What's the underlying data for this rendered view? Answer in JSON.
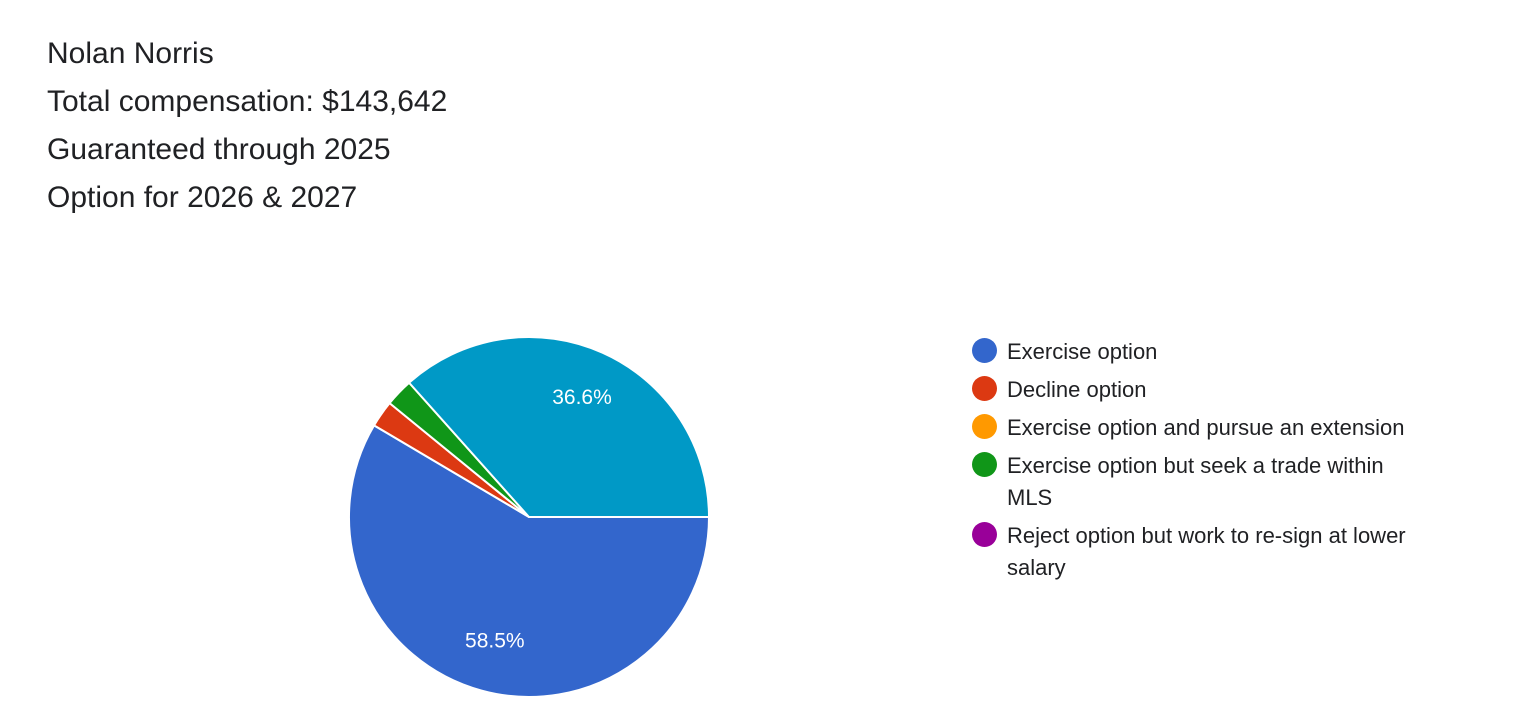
{
  "header": {
    "lines": [
      "Nolan Norris",
      "Total compensation: $143,642",
      "Guaranteed through 2025",
      "Option for 2026 & 2027"
    ]
  },
  "chart_data": {
    "type": "pie",
    "title": "",
    "legend_position": "right",
    "slices": [
      {
        "label": "Exercise option",
        "value": 58.5,
        "color": "#3366cc",
        "display_label": "58.5%"
      },
      {
        "label": "Decline option",
        "value": 2.4,
        "color": "#dc3912",
        "display_label": ""
      },
      {
        "label": "Exercise option and pursue an extension",
        "value": 0.0,
        "color": "#ff9900",
        "display_label": ""
      },
      {
        "label": "Exercise option but seek a trade within MLS",
        "value": 2.5,
        "color": "#109618",
        "display_label": ""
      },
      {
        "label": "Reject option but work to re-sign at lower salary",
        "value": 0.0,
        "color": "#990099",
        "display_label": ""
      },
      {
        "label": "",
        "value": 36.6,
        "color": "#0099c6",
        "display_label": "36.6%"
      }
    ]
  },
  "legend": {
    "items": [
      {
        "label": "Exercise option",
        "color": "#3366cc"
      },
      {
        "label": "Decline option",
        "color": "#dc3912"
      },
      {
        "label": "Exercise option and pursue an extension",
        "color": "#ff9900"
      },
      {
        "label": "Exercise option but seek a trade within MLS",
        "color": "#109618"
      },
      {
        "label": "Reject option but work to re-sign at lower salary",
        "color": "#990099"
      }
    ]
  }
}
